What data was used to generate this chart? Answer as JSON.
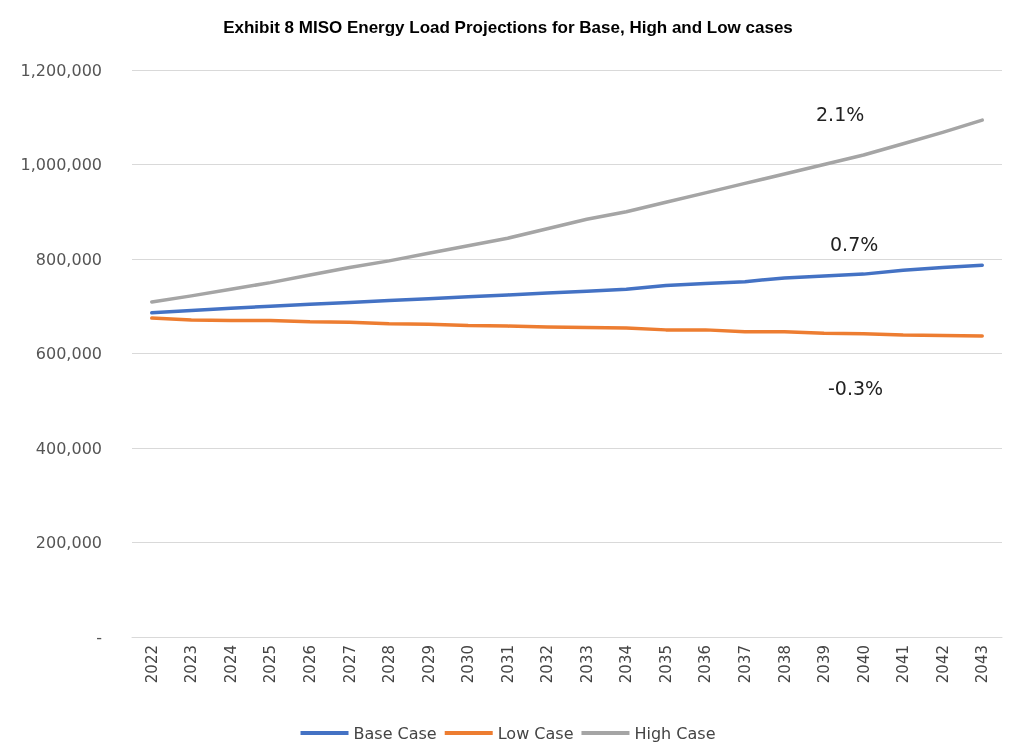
{
  "chart_data": {
    "type": "line",
    "title": "Exhibit 8 MISO Energy Load Projections for Base, High and Low cases",
    "categories": [
      "2022",
      "2023",
      "2024",
      "2025",
      "2026",
      "2027",
      "2028",
      "2029",
      "2030",
      "2031",
      "2032",
      "2033",
      "2034",
      "2035",
      "2036",
      "2037",
      "2038",
      "2039",
      "2040",
      "2041",
      "2042",
      "2043"
    ],
    "series": [
      {
        "name": "Base Case",
        "color": "#4472c4",
        "values": [
          686000,
          691000,
          696000,
          700000,
          704000,
          708000,
          712000,
          716000,
          720000,
          724000,
          728000,
          732000,
          736000,
          744000,
          748000,
          752000,
          760000,
          764000,
          768000,
          776000,
          782000,
          787000
        ]
      },
      {
        "name": "Low Case",
        "color": "#ed7d31",
        "values": [
          675000,
          671000,
          670000,
          670000,
          667000,
          666000,
          663000,
          662000,
          659000,
          658000,
          656000,
          655000,
          654000,
          650000,
          650000,
          646000,
          646000,
          643000,
          642000,
          639000,
          638000,
          637000
        ]
      },
      {
        "name": "High Case",
        "color": "#a5a5a5",
        "values": [
          709000,
          722000,
          736000,
          750000,
          766000,
          782000,
          796000,
          812000,
          828000,
          844000,
          864000,
          884000,
          900000,
          920000,
          940000,
          960000,
          980000,
          1000000,
          1020000,
          1044000,
          1068000,
          1094000
        ]
      }
    ],
    "ylim": [
      0,
      1200000
    ],
    "yticks": [
      {
        "value": 0,
        "label": "-"
      },
      {
        "value": 200000,
        "label": "200,000"
      },
      {
        "value": 400000,
        "label": "400,000"
      },
      {
        "value": 600000,
        "label": "600,000"
      },
      {
        "value": 800000,
        "label": "800,000"
      },
      {
        "value": 1000000,
        "label": "1,000,000"
      },
      {
        "value": 1200000,
        "label": "1,200,000"
      }
    ],
    "grid": "y",
    "legend": "bottom",
    "marker": "none",
    "line_style": "solid",
    "annotations": [
      "2.1%",
      "0.7%",
      "-0.3%"
    ]
  }
}
